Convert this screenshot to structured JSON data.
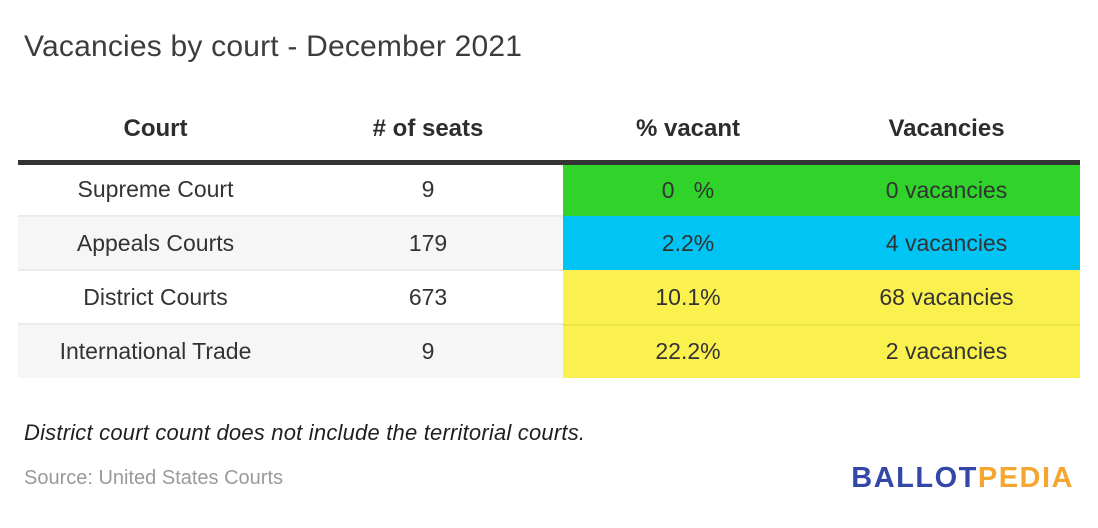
{
  "title": "Vacancies by court - December 2021",
  "table": {
    "columns": [
      "Court",
      "# of seats",
      "% vacant",
      "Vacancies"
    ],
    "rows": [
      {
        "court": "Supreme Court",
        "seats": "9",
        "pct": "0   %",
        "vacancies": "0 vacancies",
        "color": "#2fd32a"
      },
      {
        "court": "Appeals Courts",
        "seats": "179",
        "pct": "2.2%",
        "vacancies": "4 vacancies",
        "color": "#00c4f4"
      },
      {
        "court": "District Courts",
        "seats": "673",
        "pct": "10.1%",
        "vacancies": "68 vacancies",
        "color": "#faf04e"
      },
      {
        "court": "International Trade",
        "seats": "9",
        "pct": "22.2%",
        "vacancies": "2 vacancies",
        "color": "#faf04e"
      }
    ]
  },
  "note": "District court count does not include the territorial courts.",
  "source": "Source: United States Courts",
  "logo": {
    "part1": "BALLOT",
    "part2": "PEDIA"
  },
  "colors": {
    "green": "#2fd32a",
    "cyan": "#00c4f4",
    "yellow": "#faf04e",
    "row_alt_bg": "#f6f6f6",
    "header_border": "#333333",
    "row_divider": "#ebebeb",
    "title_text": "#3c3c3c",
    "body_text": "#333333",
    "source_text": "#9a9a9a",
    "logo_blue": "#3347a8",
    "logo_orange": "#f4a631"
  },
  "chart_data": {
    "type": "table",
    "title": "Vacancies by court - December 2021",
    "columns": [
      "Court",
      "# of seats",
      "% vacant",
      "Vacancies"
    ],
    "rows": [
      [
        "Supreme Court",
        9,
        0.0,
        0
      ],
      [
        "Appeals Courts",
        179,
        2.2,
        4
      ],
      [
        "District Courts",
        673,
        10.1,
        68
      ],
      [
        "International Trade",
        9,
        22.2,
        2
      ]
    ],
    "note": "District court count does not include the territorial courts.",
    "source": "United States Courts",
    "cell_color_coding": {
      "Supreme Court": "green",
      "Appeals Courts": "cyan",
      "District Courts": "yellow",
      "International Trade": "yellow"
    }
  }
}
